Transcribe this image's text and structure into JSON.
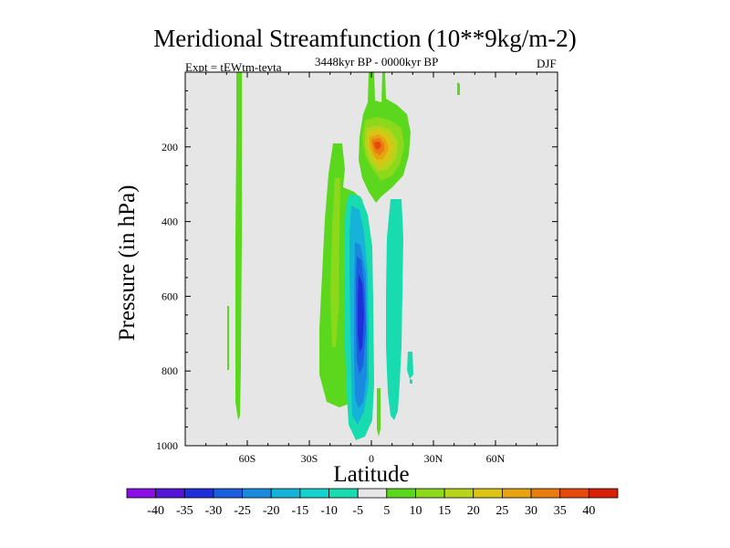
{
  "chart_data": {
    "type": "contour",
    "title": "Meridional Streamfunction (10**9kg/m-2)",
    "subtitle": "3448kyr BP - 0000kyr BP",
    "experiment": "Expt = tEWtm-tevta",
    "season": "DJF",
    "xlabel": "Latitude",
    "ylabel": "Pressure (in hPa)",
    "xlim": [
      -90,
      90
    ],
    "ylim": [
      1000,
      0
    ],
    "x_ticks": [
      {
        "value": -60,
        "label": "60S"
      },
      {
        "value": -30,
        "label": "30S"
      },
      {
        "value": 0,
        "label": "0"
      },
      {
        "value": 30,
        "label": "30N"
      },
      {
        "value": 60,
        "label": "60N"
      }
    ],
    "y_ticks": [
      {
        "value": 200,
        "label": "200"
      },
      {
        "value": 400,
        "label": "400"
      },
      {
        "value": 600,
        "label": "600"
      },
      {
        "value": 800,
        "label": "800"
      },
      {
        "value": 1000,
        "label": "1000"
      }
    ],
    "colorbar": {
      "levels": [
        "-40",
        "-35",
        "-30",
        "-25",
        "-20",
        "-15",
        "-10",
        "-5",
        "5",
        "10",
        "15",
        "20",
        "25",
        "30",
        "35",
        "40"
      ],
      "colors": [
        "#8a0fe6",
        "#5414d6",
        "#1e2ed8",
        "#1c5ee0",
        "#1a8ade",
        "#15b3d8",
        "#15d2cc",
        "#18dcb0",
        "#e6e6e6",
        "#5bd81e",
        "#8cd91c",
        "#b8d41a",
        "#dcc414",
        "#e8a410",
        "#e87c0e",
        "#e44a0a",
        "#d81e06"
      ]
    },
    "features": [
      {
        "name": "southern-cell-positive",
        "value_range": "5-10",
        "lat": -62,
        "pressure": [
          0,
          920
        ]
      },
      {
        "name": "southern-cell-small",
        "value_range": "5",
        "lat": -69,
        "pressure": [
          620,
          800
        ]
      },
      {
        "name": "hadley-south-outer",
        "value_range": "5-10",
        "lat": [
          -25,
          -6
        ],
        "pressure": [
          230,
          960
        ]
      },
      {
        "name": "hadley-south-core",
        "value_range": "-5 to -30",
        "lat": [
          -20,
          0
        ],
        "pressure": [
          220,
          980
        ]
      },
      {
        "name": "upper-positive-max",
        "value_range": "5-35",
        "lat": [
          -5,
          20
        ],
        "pressure": [
          0,
          330
        ]
      },
      {
        "name": "hadley-north-negative",
        "value_range": "-5 to -10",
        "lat": [
          8,
          20
        ],
        "pressure": [
          320,
          900
        ]
      },
      {
        "name": "small-positive-north",
        "value_range": "5",
        "lat": 43,
        "pressure": [
          20,
          40
        ]
      },
      {
        "name": "small-negative-north",
        "value_range": "-5",
        "lat": 20,
        "pressure": [
          730,
          820
        ]
      }
    ]
  }
}
